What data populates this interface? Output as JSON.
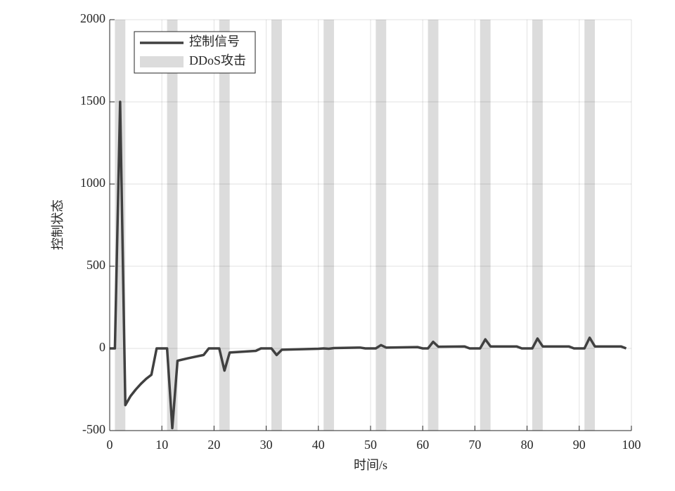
{
  "chart_data": {
    "type": "line",
    "xlabel": "时间/s",
    "ylabel": "控制状态",
    "x": [
      0,
      1,
      2,
      3,
      4,
      5,
      6,
      7,
      8,
      9,
      11,
      12,
      13,
      15,
      18,
      19,
      21,
      22,
      23,
      28,
      29,
      31,
      32,
      33,
      40,
      41,
      42,
      43,
      48,
      49,
      51,
      52,
      53,
      59,
      60,
      61,
      62,
      63,
      68,
      69,
      71,
      72,
      73,
      78,
      79,
      81,
      82,
      83,
      88,
      89,
      91,
      92,
      93,
      98,
      99
    ],
    "series": [
      {
        "name": "控制信号",
        "color": "#404040",
        "values": [
          0,
          0,
          1500,
          -345,
          -290,
          -250,
          -215,
          -185,
          -160,
          0,
          0,
          -485,
          -75,
          -60,
          -40,
          0,
          0,
          -135,
          -25,
          -15,
          0,
          0,
          -40,
          -8,
          -2,
          0,
          -2,
          2,
          5,
          0,
          0,
          20,
          5,
          8,
          0,
          0,
          40,
          10,
          12,
          0,
          0,
          55,
          12,
          12,
          0,
          0,
          60,
          12,
          12,
          0,
          0,
          65,
          12,
          12,
          0
        ]
      }
    ],
    "shaded_regions": {
      "name": "DDoS攻击",
      "color": "#dcdcdc",
      "intervals": [
        [
          1,
          3
        ],
        [
          11,
          13
        ],
        [
          21,
          23
        ],
        [
          31,
          33
        ],
        [
          41,
          43
        ],
        [
          51,
          53
        ],
        [
          61,
          63
        ],
        [
          71,
          73
        ],
        [
          81,
          83
        ],
        [
          91,
          93
        ]
      ]
    },
    "xlim": [
      0,
      100
    ],
    "xticks": [
      0,
      10,
      20,
      30,
      40,
      50,
      60,
      70,
      80,
      90,
      100
    ],
    "ylim": [
      -500,
      2000
    ],
    "yticks": [
      -500,
      0,
      500,
      1000,
      1500,
      2000
    ],
    "grid": true,
    "legend": "upper-left"
  }
}
